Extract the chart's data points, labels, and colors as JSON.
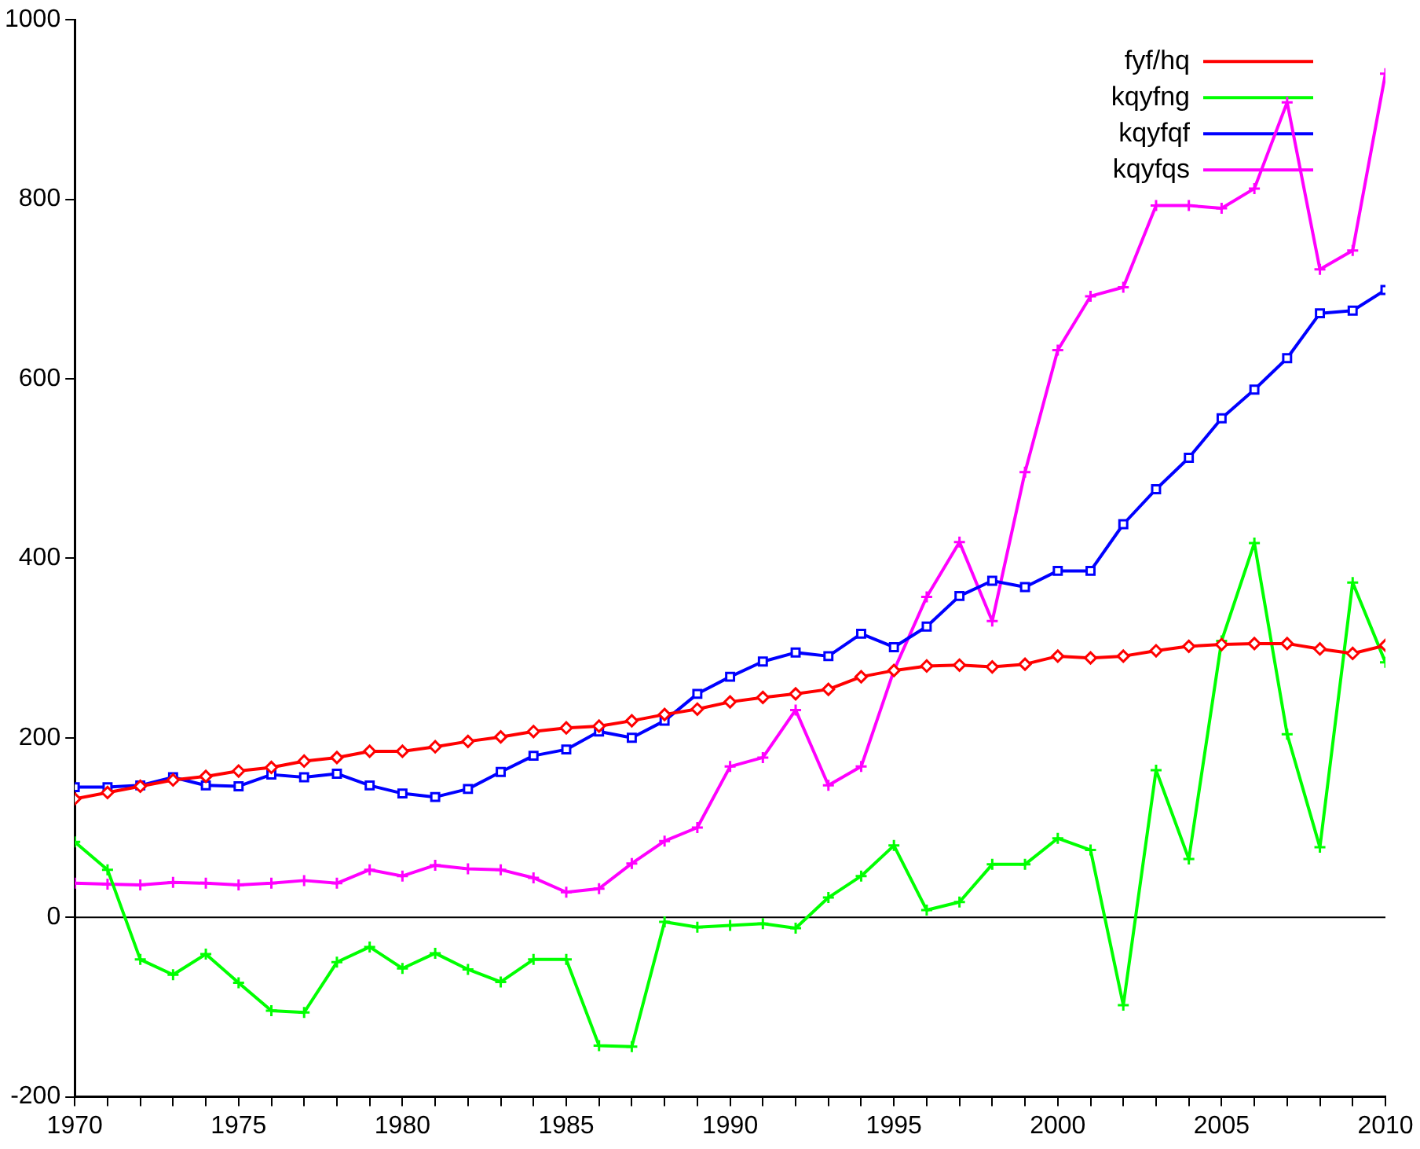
{
  "chart_data": {
    "type": "line",
    "x": [
      1970,
      1971,
      1972,
      1973,
      1974,
      1975,
      1976,
      1977,
      1978,
      1979,
      1980,
      1981,
      1982,
      1983,
      1984,
      1985,
      1986,
      1987,
      1988,
      1989,
      1990,
      1991,
      1992,
      1993,
      1994,
      1995,
      1996,
      1997,
      1998,
      1999,
      2000,
      2001,
      2002,
      2003,
      2004,
      2005,
      2006,
      2007,
      2008,
      2009,
      2010
    ],
    "series": [
      {
        "name": "fyf/hq",
        "color": "#ff0000",
        "marker": "diamond",
        "values": [
          132,
          139,
          146,
          153,
          157,
          163,
          167,
          174,
          178,
          185,
          185,
          190,
          196,
          201,
          207,
          211,
          213,
          219,
          226,
          232,
          240,
          245,
          249,
          254,
          268,
          275,
          280,
          281,
          279,
          282,
          291,
          289,
          291,
          297,
          302,
          304,
          305,
          305,
          299,
          294,
          303
        ]
      },
      {
        "name": "kqyfng",
        "color": "#00ff00",
        "marker": "cross",
        "values": [
          84,
          53,
          -47,
          -64,
          -41,
          -73,
          -104,
          -106,
          -50,
          -33,
          -57,
          -40,
          -58,
          -72,
          -47,
          -47,
          -143,
          -144,
          -5,
          -11,
          -9,
          -7,
          -12,
          22,
          46,
          80,
          8,
          17,
          59,
          59,
          88,
          75,
          -98,
          164,
          65,
          308,
          417,
          204,
          78,
          373,
          284
        ]
      },
      {
        "name": "kqyfqf",
        "color": "#0000ff",
        "marker": "square",
        "values": [
          145,
          145,
          147,
          156,
          147,
          146,
          159,
          156,
          160,
          147,
          138,
          134,
          143,
          162,
          180,
          187,
          207,
          200,
          219,
          249,
          268,
          285,
          295,
          291,
          316,
          301,
          324,
          358,
          375,
          368,
          386,
          386,
          438,
          477,
          512,
          556,
          588,
          623,
          673,
          676,
          699
        ]
      },
      {
        "name": "kqyfqs",
        "color": "#ff00ff",
        "marker": "cross",
        "values": [
          38,
          37,
          36,
          39,
          38,
          36,
          38,
          41,
          38,
          53,
          46,
          58,
          54,
          53,
          44,
          28,
          32,
          60,
          85,
          100,
          168,
          178,
          231,
          147,
          168,
          275,
          357,
          418,
          330,
          496,
          632,
          692,
          702,
          793,
          793,
          790,
          812,
          908,
          722,
          743,
          940
        ]
      }
    ],
    "xlim": [
      1970,
      2010
    ],
    "xticks": [
      1970,
      {
        "value": 1971,
        "label": null
      },
      {
        "value": 1972,
        "label": null
      },
      {
        "value": 1973,
        "label": null
      },
      {
        "value": 1974,
        "label": null
      },
      1975,
      {
        "value": 1976,
        "label": null
      },
      {
        "value": 1977,
        "label": null
      },
      {
        "value": 1978,
        "label": null
      },
      {
        "value": 1979,
        "label": null
      },
      1980,
      {
        "value": 1981,
        "label": null
      },
      {
        "value": 1982,
        "label": null
      },
      {
        "value": 1983,
        "label": null
      },
      {
        "value": 1984,
        "label": null
      },
      1985,
      {
        "value": 1986,
        "label": null
      },
      {
        "value": 1987,
        "label": null
      },
      {
        "value": 1988,
        "label": null
      },
      {
        "value": 1989,
        "label": null
      },
      1990,
      {
        "value": 1991,
        "label": null
      },
      {
        "value": 1992,
        "label": null
      },
      {
        "value": 1993,
        "label": null
      },
      {
        "value": 1994,
        "label": null
      },
      1995,
      {
        "value": 1996,
        "label": null
      },
      {
        "value": 1997,
        "label": null
      },
      {
        "value": 1998,
        "label": null
      },
      {
        "value": 1999,
        "label": null
      },
      2000,
      {
        "value": 2001,
        "label": null
      },
      {
        "value": 2002,
        "label": null
      },
      {
        "value": 2003,
        "label": null
      },
      {
        "value": 2004,
        "label": null
      },
      2005,
      {
        "value": 2006,
        "label": null
      },
      {
        "value": 2007,
        "label": null
      },
      {
        "value": 2008,
        "label": null
      },
      {
        "value": 2009,
        "label": null
      },
      2010
    ],
    "ylim": [
      -200,
      1000
    ],
    "yticks": [
      -200,
      0,
      200,
      400,
      600,
      800,
      1000
    ],
    "ref_lines": [
      {
        "axis": "y",
        "value": 0,
        "color": "#000000"
      }
    ],
    "grid": false,
    "legend": "top right",
    "line_style": "solid"
  }
}
